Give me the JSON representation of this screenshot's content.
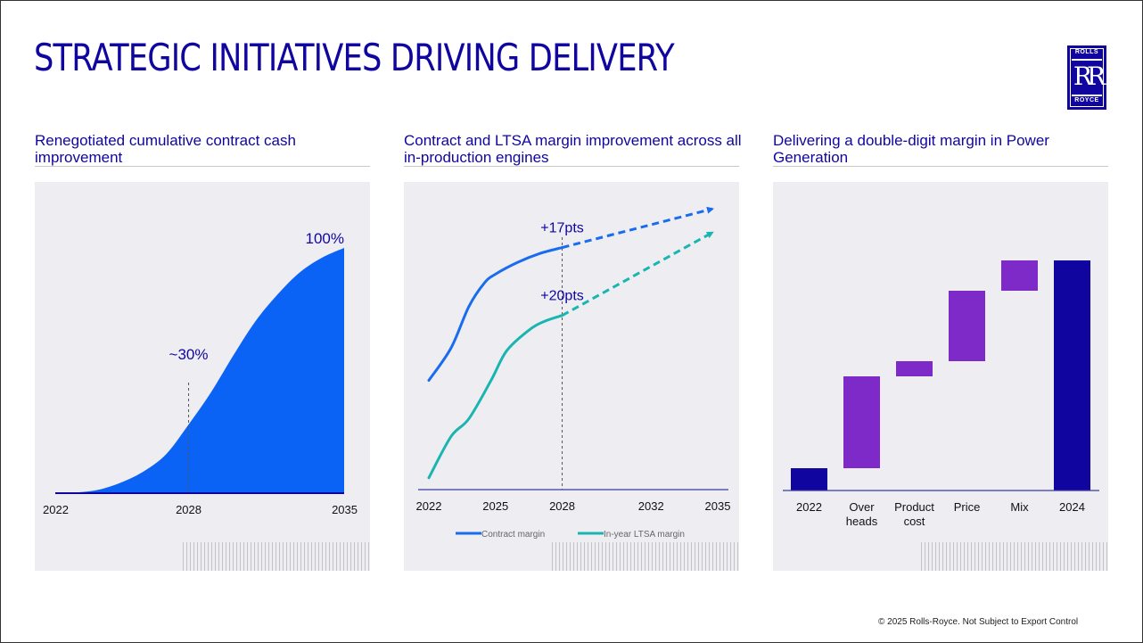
{
  "page_title": "STRATEGIC INITIATIVES DRIVING DELIVERY",
  "logo": {
    "top": "ROLLS",
    "mark": "RR",
    "bottom": "ROYCE"
  },
  "footer": "© 2025 Rolls-Royce. Not Subject to Export Control",
  "colors": {
    "navy": "#10069f",
    "blue": "#1a6cef",
    "teal": "#1ab5b0",
    "purple": "#7e2ac8",
    "area": "#0b63f6"
  },
  "panels": [
    {
      "title": "Renegotiated cumulative contract cash improvement"
    },
    {
      "title": "Contract and LTSA margin improvement across all in-production engines"
    },
    {
      "title": "Delivering a double-digit margin in Power Generation"
    }
  ],
  "chart_data": [
    {
      "type": "area",
      "title": "Renegotiated cumulative contract cash improvement",
      "x": [
        2022,
        2023,
        2024,
        2025,
        2026,
        2027,
        2028,
        2029,
        2030,
        2031,
        2032,
        2033,
        2034,
        2035
      ],
      "values": [
        0,
        0.3,
        1.5,
        4.5,
        9,
        16,
        28,
        41,
        56,
        70,
        81,
        90,
        96,
        100
      ],
      "xticks": [
        2022,
        2028,
        2035
      ],
      "annotations": [
        {
          "x": 2028,
          "label": "~30%"
        },
        {
          "x": 2035,
          "label": "100%"
        }
      ],
      "ylim": [
        0,
        100
      ]
    },
    {
      "type": "line",
      "title": "Contract and LTSA margin improvement across all in-production engines",
      "xticks": [
        2022,
        2025,
        2028,
        2032,
        2035
      ],
      "xlim": [
        2022,
        2035
      ],
      "ylim": [
        0,
        100
      ],
      "marker_x": 2028,
      "series": [
        {
          "name": "Contract margin",
          "color": "#1a6cef",
          "x": [
            2022,
            2023,
            2023.8,
            2024.5,
            2025,
            2026,
            2027,
            2028
          ],
          "values": [
            37,
            48,
            62,
            70,
            73,
            77,
            80,
            82
          ],
          "projection": {
            "x": [
              2028,
              2035
            ],
            "values": [
              82,
              96
            ]
          },
          "label": "+17pts"
        },
        {
          "name": "In-year LTSA margin",
          "color": "#1ab5b0",
          "x": [
            2022,
            2023,
            2023.8,
            2024.8,
            2025.5,
            2026.5,
            2027.2,
            2028
          ],
          "values": [
            4,
            18,
            24,
            37,
            47,
            54,
            57,
            59
          ],
          "projection": {
            "x": [
              2028,
              2035
            ],
            "values": [
              59,
              88
            ]
          },
          "label": "+20pts"
        }
      ]
    },
    {
      "type": "bar",
      "subtype": "waterfall",
      "title": "Delivering a double-digit margin in Power Generation",
      "categories": [
        "2022",
        "Over\nheads",
        "Product\ncost",
        "Price",
        "Mix",
        "2024"
      ],
      "bars": [
        {
          "kind": "total",
          "from": 0,
          "to": 25,
          "color": "#10069f"
        },
        {
          "kind": "delta",
          "from": 25,
          "to": 128,
          "color": "#7e2ac8"
        },
        {
          "kind": "delta",
          "from": 128,
          "to": 145,
          "color": "#7e2ac8"
        },
        {
          "kind": "delta",
          "from": 145,
          "to": 224,
          "color": "#7e2ac8"
        },
        {
          "kind": "delta",
          "from": 224,
          "to": 258,
          "color": "#7e2ac8"
        },
        {
          "kind": "total",
          "from": 0,
          "to": 258,
          "color": "#10069f"
        }
      ],
      "ylim": [
        0,
        300
      ]
    }
  ]
}
